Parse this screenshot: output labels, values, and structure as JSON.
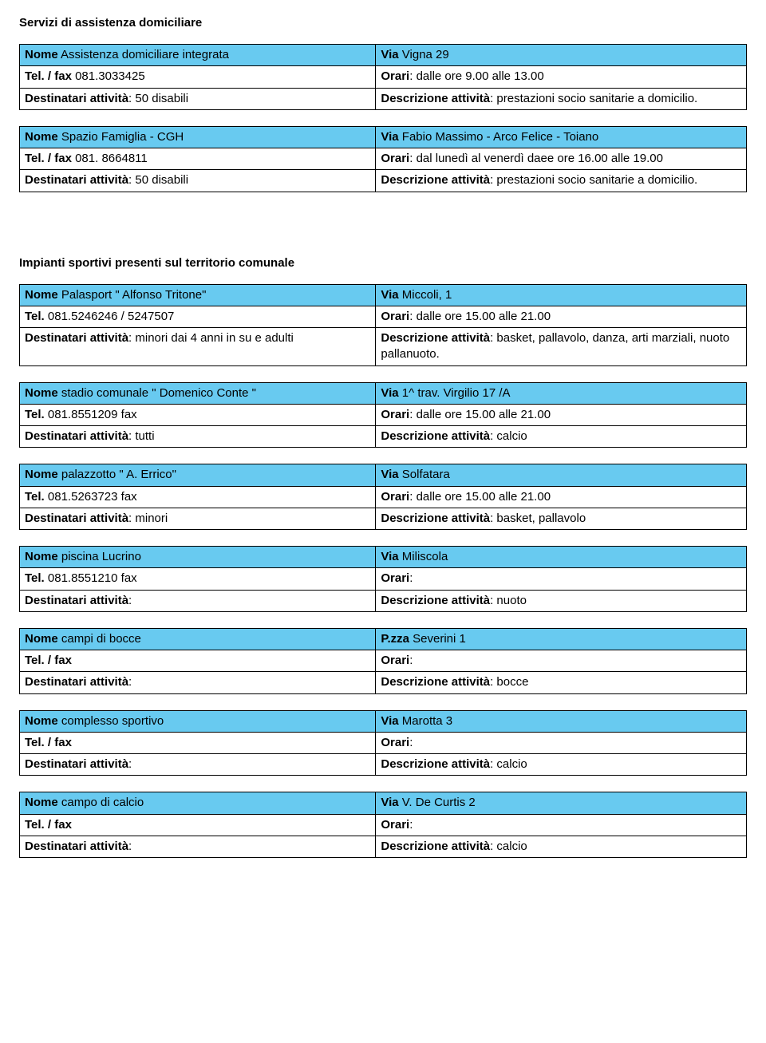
{
  "colors": {
    "header_bg": "#68caf0",
    "border": "#000000",
    "text": "#000000",
    "page_bg": "#ffffff"
  },
  "typography": {
    "font_family": "Arial",
    "font_size_pt": 11,
    "line_height": 1.35
  },
  "section1": {
    "title": "Servizi di assistenza domiciliare",
    "tables": [
      {
        "r1l_label": "Nome",
        "r1l_val": " Assistenza domiciliare integrata",
        "r1r_label": "Via",
        "r1r_val": "  Vigna 29",
        "r2l_label": "Tel. / fax",
        "r2l_val": " 081.3033425",
        "r2r_label": "Orari",
        "r2r_val": ": dalle ore 9.00 alle 13.00",
        "r3l_label": "Destinatari attività",
        "r3l_val": ": 50 disabili",
        "r3r_label": "Descrizione attività",
        "r3r_val": ": prestazioni socio sanitarie a domicilio."
      },
      {
        "r1l_label": "Nome",
        "r1l_val": " Spazio Famiglia - CGH",
        "r1r_label": "Via",
        "r1r_val": "  Fabio Massimo  - Arco Felice  - Toiano",
        "r2l_label": "Tel. / fax",
        "r2l_val": " 081. 8664811",
        "r2r_label": "Orari",
        "r2r_val": ": dal lunedì al venerdì daee ore 16.00 alle 19.00",
        "r3l_label": "Destinatari attività",
        "r3l_val": ": 50 disabili",
        "r3r_label": "Descrizione attività",
        "r3r_val": ": prestazioni socio sanitarie a domicilio."
      }
    ]
  },
  "section2": {
    "title": "Impianti sportivi presenti sul territorio comunale",
    "tables": [
      {
        "r1l_label": "Nome",
        "r1l_val": " Palasport \" Alfonso Tritone\"",
        "r1r_label": " Via",
        "r1r_val": " Miccoli, 1",
        "r2l_label": "Tel.",
        "r2l_val": " 081.5246246 / 5247507",
        "r2r_label": "Orari",
        "r2r_val": ": dalle ore  15.00 alle 21.00",
        "r3l_label": "Destinatari attività",
        "r3l_val": ":  minori dai 4 anni in su e adulti",
        "r3r_label": "Descrizione attività",
        "r3r_val": ":  basket, pallavolo, danza, arti marziali, nuoto pallanuoto."
      },
      {
        "r1l_label": "Nome",
        "r1l_val": "  stadio comunale \" Domenico Conte \"",
        "r1r_label": "Via",
        "r1r_val": "  1^ trav. Virgilio 17 /A",
        "r2l_label": "Tel.",
        "r2l_val": " 081.8551209  fax",
        "r2r_label": "Orari",
        "r2r_val": ": dalle ore  15.00 alle  21.00",
        "r3l_label": "Destinatari attività",
        "r3l_val": ":  tutti",
        "r3r_label": "Descrizione attività",
        "r3r_val": ":  calcio"
      },
      {
        "r1l_label": "Nome",
        "r1l_val": "  palazzotto \" A. Errico\"",
        "r1r_label": "Via",
        "r1r_val": "  Solfatara",
        "r2l_label": "Tel.",
        "r2l_val": " 081.5263723  fax",
        "r2r_label": "Orari",
        "r2r_val": ":  dalle ore 15.00 alle 21.00",
        "r3l_label": "Destinatari attività",
        "r3l_val": ":  minori",
        "r3r_label": "Descrizione attività",
        "r3r_val": ":  basket, pallavolo"
      },
      {
        "r1l_label": "Nome",
        "r1l_val": "  piscina Lucrino",
        "r1r_label": "Via",
        "r1r_val": "   Miliscola",
        "r2l_label": "Tel.",
        "r2l_val": " 081.8551210  fax",
        "r2r_label": "Orari",
        "r2r_val": ":",
        "r3l_label": "Destinatari attività",
        "r3l_val": ":",
        "r3r_label": "Descrizione attività",
        "r3r_val": ": nuoto"
      },
      {
        "r1l_label": "Nome",
        "r1l_val": " campi  di bocce",
        "r1r_label": " P.zza",
        "r1r_val": " Severini 1",
        "r2l_label": "Tel. / fax",
        "r2l_val": "",
        "r2r_label": "Orari",
        "r2r_val": ":",
        "r3l_label": "Destinatari attività",
        "r3l_val": ":",
        "r3r_label": "Descrizione attività",
        "r3r_val": ":  bocce"
      },
      {
        "r1l_label": "Nome",
        "r1l_val": "  complesso sportivo",
        "r1r_label": "Via",
        "r1r_val": "  Marotta   3",
        "r2l_label": "Tel. / fax",
        "r2l_val": "",
        "r2r_label": "Orari",
        "r2r_val": ":",
        "r3l_label": "Destinatari attività",
        "r3l_val": ":",
        "r3r_label": "Descrizione attività",
        "r3r_val": ":  calcio"
      },
      {
        "r1l_label": "Nome",
        "r1l_val": "  campo di calcio",
        "r1r_label": "Via",
        "r1r_val": "  V. De Curtis  2",
        "r2l_label": "Tel. / fax",
        "r2l_val": "",
        "r2r_label": "Orari",
        "r2r_val": ":",
        "r3l_label": "Destinatari attività",
        "r3l_val": ":",
        "r3r_label": "Descrizione attività",
        "r3r_val": ":  calcio"
      }
    ]
  }
}
